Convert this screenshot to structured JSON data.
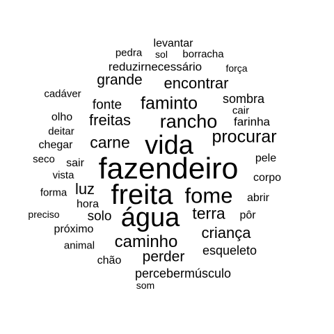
{
  "text_color": "#000000",
  "background_color": "#ffffff",
  "words": [
    {
      "text": "fazendeiro",
      "weight": 10
    },
    {
      "text": "freita",
      "weight": 9
    },
    {
      "text": "água",
      "weight": 8.5
    },
    {
      "text": "vida",
      "weight": 8.5
    },
    {
      "text": "fome",
      "weight": 7
    },
    {
      "text": "rancho",
      "weight": 6
    },
    {
      "text": "faminto",
      "weight": 5.5
    },
    {
      "text": "procurar",
      "weight": 5.5
    },
    {
      "text": "caminho",
      "weight": 5.3
    },
    {
      "text": "carne",
      "weight": 5.1
    },
    {
      "text": "terra",
      "weight": 5.1
    },
    {
      "text": "criança",
      "weight": 5
    },
    {
      "text": "encontrar",
      "weight": 5
    },
    {
      "text": "freitas",
      "weight": 5
    },
    {
      "text": "luz",
      "weight": 4.9
    },
    {
      "text": "perder",
      "weight": 4.8
    },
    {
      "text": "grande",
      "weight": 4.6
    },
    {
      "text": "fonte",
      "weight": 4.3
    },
    {
      "text": "solo",
      "weight": 4.2
    },
    {
      "text": "sombra",
      "weight": 4.1
    },
    {
      "text": "esqueleto",
      "weight": 4
    },
    {
      "text": "percebermúsculo",
      "weight": 4
    },
    {
      "text": "reduzirnecessário",
      "weight": 3.9
    },
    {
      "text": "farinha",
      "weight": 3.9
    },
    {
      "text": "hora",
      "weight": 3.7
    },
    {
      "text": "sair",
      "weight": 3.7
    },
    {
      "text": "pele",
      "weight": 3.6
    },
    {
      "text": "próximo",
      "weight": 3.6
    },
    {
      "text": "pôr",
      "weight": 3.6
    },
    {
      "text": "chegar",
      "weight": 3.6
    },
    {
      "text": "abrir",
      "weight": 3.5
    },
    {
      "text": "corpo",
      "weight": 3.5
    },
    {
      "text": "olho",
      "weight": 3.5
    },
    {
      "text": "levantar",
      "weight": 3.5
    },
    {
      "text": "chão",
      "weight": 3.5
    },
    {
      "text": "animal",
      "weight": 3.4
    },
    {
      "text": "deitar",
      "weight": 3.4
    },
    {
      "text": "vista",
      "weight": 3.4
    },
    {
      "text": "borracha",
      "weight": 3.4
    },
    {
      "text": "cair",
      "weight": 3.4
    },
    {
      "text": "forma",
      "weight": 3.3
    },
    {
      "text": "pedra",
      "weight": 3.3
    },
    {
      "text": "seco",
      "weight": 3.3
    },
    {
      "text": "cadáver",
      "weight": 3.3
    },
    {
      "text": "sol",
      "weight": 3.2
    },
    {
      "text": "preciso",
      "weight": 3.2
    },
    {
      "text": "força",
      "weight": 3.1
    },
    {
      "text": "som",
      "weight": 3.1
    }
  ]
}
